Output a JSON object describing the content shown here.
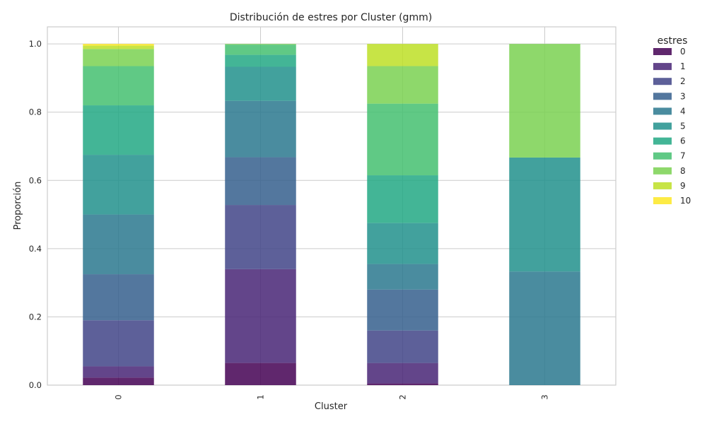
{
  "chart_data": {
    "type": "bar",
    "stacked": true,
    "title": "Distribución de estres por Cluster (gmm)",
    "xlabel": "Cluster",
    "ylabel": "Proporción",
    "categories": [
      "0",
      "1",
      "2",
      "3"
    ],
    "ylim": [
      0,
      1.05
    ],
    "yticks": [
      "0.0",
      "0.2",
      "0.4",
      "0.6",
      "0.8",
      "1.0"
    ],
    "grid": true,
    "legend_title": "estres",
    "legend_position": "outside-right",
    "series": [
      {
        "name": "0",
        "color": "#440154",
        "values": [
          0.022,
          0.065,
          0.005,
          0.0
        ]
      },
      {
        "name": "1",
        "color": "#482475",
        "values": [
          0.033,
          0.275,
          0.06,
          0.0
        ]
      },
      {
        "name": "2",
        "color": "#414487",
        "values": [
          0.135,
          0.188,
          0.095,
          0.0
        ]
      },
      {
        "name": "3",
        "color": "#355f8d",
        "values": [
          0.135,
          0.14,
          0.12,
          0.0
        ]
      },
      {
        "name": "4",
        "color": "#2a788e",
        "values": [
          0.175,
          0.165,
          0.075,
          0.333
        ]
      },
      {
        "name": "5",
        "color": "#21918c",
        "values": [
          0.175,
          0.1,
          0.12,
          0.334
        ]
      },
      {
        "name": "6",
        "color": "#22a884",
        "values": [
          0.145,
          0.035,
          0.14,
          0.0
        ]
      },
      {
        "name": "7",
        "color": "#44bf70",
        "values": [
          0.115,
          0.03,
          0.21,
          0.0
        ]
      },
      {
        "name": "8",
        "color": "#7ad151",
        "values": [
          0.05,
          0.002,
          0.11,
          0.333
        ]
      },
      {
        "name": "9",
        "color": "#bddf26",
        "values": [
          0.01,
          0.0,
          0.065,
          0.0
        ]
      },
      {
        "name": "10",
        "color": "#fde725",
        "values": [
          0.005,
          0.0,
          0.0,
          0.0
        ]
      }
    ]
  }
}
